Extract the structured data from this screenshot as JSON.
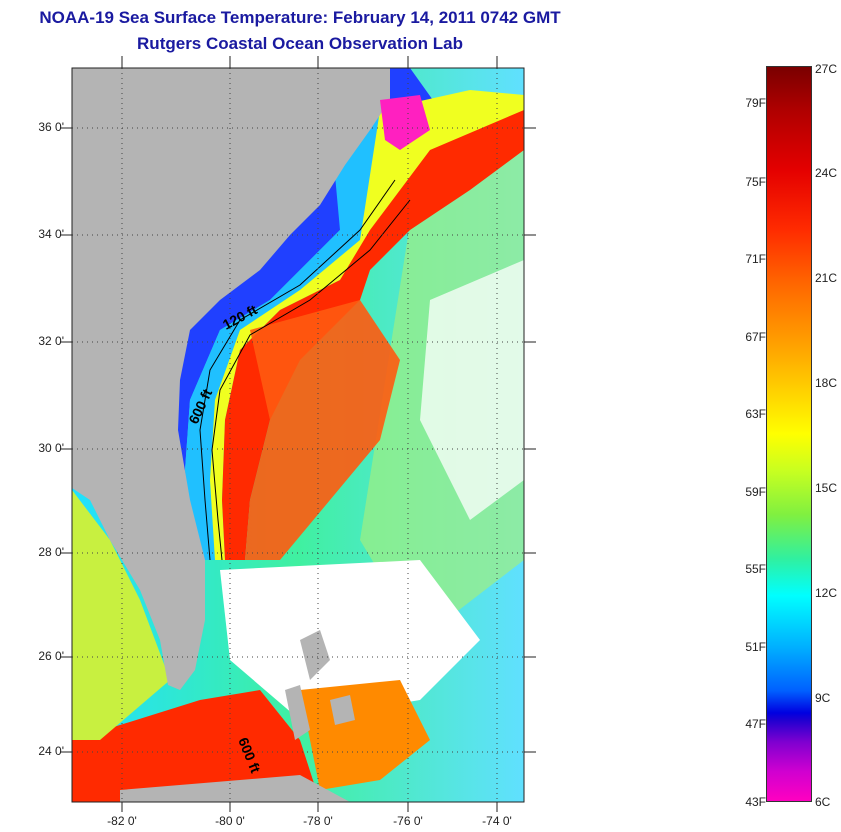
{
  "header": {
    "title": "NOAA-19 Sea Surface Temperature:  February 14, 2011 0742 GMT",
    "subtitle": "Rutgers Coastal Ocean Observation Lab"
  },
  "map": {
    "latitude_labels": [
      "36 0'",
      "34 0'",
      "32 0'",
      "30 0'",
      "28 0'",
      "26 0'",
      "24 0'"
    ],
    "longitude_labels": [
      "-82 0'",
      "-80 0'",
      "-78 0'",
      "-76 0'",
      "-74 0'"
    ],
    "contour_labels": {
      "c120": "120 ft",
      "c600a": "600 ft",
      "c600b": "600 ft"
    },
    "colors": {
      "land": "#b4b4b4",
      "gulf_stream": "#ff2a00",
      "coastal_cold": "#2040ff",
      "cloud": "#ffffff"
    }
  },
  "colorbar": {
    "fahrenheit_labels": [
      "79F",
      "75F",
      "71F",
      "67F",
      "63F",
      "59F",
      "55F",
      "51F",
      "47F",
      "43F"
    ],
    "celsius_labels": [
      "27C",
      "24C",
      "21C",
      "18C",
      "15C",
      "12C",
      "9C",
      "6C"
    ]
  }
}
